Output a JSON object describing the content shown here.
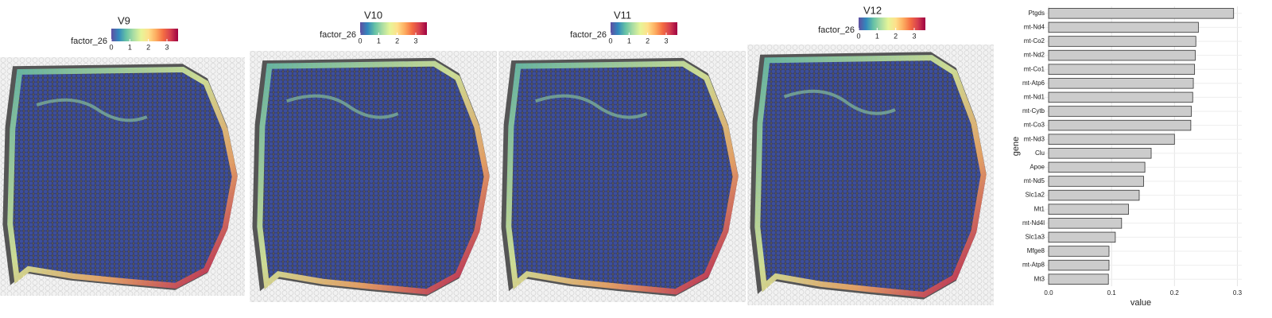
{
  "chart_data": [
    {
      "type": "spatial",
      "title": "V9",
      "legend_title": "factor_26",
      "clim": [
        0,
        3.6
      ],
      "cticks": [
        0,
        1,
        2,
        3
      ],
      "colors": [
        "#5e4fa2",
        "#3288bd",
        "#66c2a5",
        "#abdda4",
        "#e6f598",
        "#fee08b",
        "#fdae61",
        "#f46d43",
        "#d53e4f",
        "#9e0142"
      ]
    },
    {
      "type": "spatial",
      "title": "V10",
      "legend_title": "factor_26",
      "clim": [
        0,
        3.6
      ],
      "cticks": [
        0,
        1,
        2,
        3
      ],
      "colors": [
        "#5e4fa2",
        "#3288bd",
        "#66c2a5",
        "#abdda4",
        "#e6f598",
        "#fee08b",
        "#fdae61",
        "#f46d43",
        "#d53e4f",
        "#9e0142"
      ]
    },
    {
      "type": "spatial",
      "title": "V11",
      "legend_title": "factor_26",
      "clim": [
        0,
        3.6
      ],
      "cticks": [
        0,
        1,
        2,
        3
      ],
      "colors": [
        "#5e4fa2",
        "#3288bd",
        "#66c2a5",
        "#abdda4",
        "#e6f598",
        "#fee08b",
        "#fdae61",
        "#f46d43",
        "#d53e4f",
        "#9e0142"
      ]
    },
    {
      "type": "spatial",
      "title": "V12",
      "legend_title": "factor_26",
      "clim": [
        0,
        3.6
      ],
      "cticks": [
        0,
        1,
        2,
        3
      ],
      "colors": [
        "#5e4fa2",
        "#3288bd",
        "#66c2a5",
        "#abdda4",
        "#e6f598",
        "#fee08b",
        "#fdae61",
        "#f46d43",
        "#d53e4f",
        "#9e0142"
      ]
    },
    {
      "type": "hbar",
      "x_label": "value",
      "y_label": "gene",
      "color": "#cccccc",
      "grid": true,
      "categories": [
        "Ptgds",
        "mt-Nd4",
        "mt-Co2",
        "mt-Nd2",
        "mt-Co1",
        "mt-Atp6",
        "mt-Nd1",
        "mt-Cytb",
        "mt-Co3",
        "mt-Nd3",
        "Clu",
        "Apoe",
        "mt-Nd5",
        "Slc1a2",
        "Mt1",
        "mt-Nd4l",
        "Slc1a3",
        "Mfge8",
        "mt-Atp8",
        "Mt3"
      ],
      "values": [
        0.294,
        0.238,
        0.234,
        0.233,
        0.232,
        0.23,
        0.229,
        0.227,
        0.226,
        0.2,
        0.163,
        0.153,
        0.151,
        0.144,
        0.127,
        0.116,
        0.106,
        0.096,
        0.096,
        0.095
      ],
      "xlim": [
        -0.024,
        0.307
      ],
      "xticks": [
        {
          "value": 0,
          "label": "0.0"
        },
        0.1,
        0.2,
        0.3
      ]
    }
  ]
}
